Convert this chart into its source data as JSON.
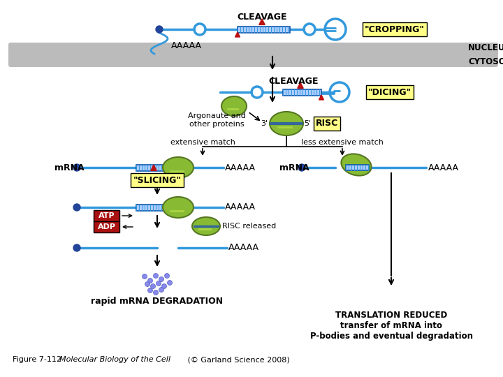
{
  "bg_color": "#ffffff",
  "blue": "#3399dd",
  "dark_blue": "#1155aa",
  "blue_dot": "#224499",
  "green": "#88bb33",
  "dark_green": "#557722",
  "green_light": "#aad444",
  "yellow_bg": "#ffff88",
  "red": "#bb1111",
  "atp_red": "#aa1111",
  "gray": "#bbbbbb",
  "gray_dark": "#999999",
  "black": "#000000",
  "nucleus_label": "NUCLEUS",
  "cytosol_label": "CYTOSOL",
  "cleavage_top": "CLEAVAGE",
  "cleavage_bottom": "CLEAVAGE",
  "cropping": "\"CROPPING\"",
  "dicing": "\"DICING\"",
  "slicing": "\"SLICING\"",
  "risc": "RISC",
  "aaaaa": "AAAAA",
  "mrna": "mRNA",
  "argonaute": "Argonaute and\nother proteins",
  "extensive": "extensive match",
  "less_extensive": "less extensive match",
  "risc_released": "RISC released",
  "atp": "ATP",
  "adp": "ADP",
  "rapid_deg": "rapid mRNA DEGRADATION",
  "trans_reduced": "TRANSLATION REDUCED\ntransfer of mRNA into\nP-bodies and eventual degradation",
  "caption1": "Figure 7-112  ",
  "caption2": "Molecular Biology of the Cell",
  "caption3": " (© Garland Science 2008)"
}
